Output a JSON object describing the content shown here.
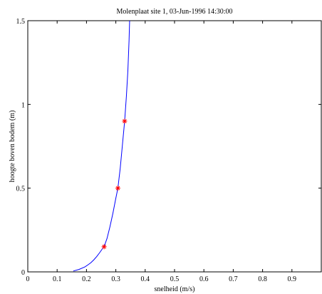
{
  "chart_data": {
    "type": "line",
    "title": "Molenplaat  site 1, 03-Jun-1996 14:30:00",
    "xlabel": "snelheid (m/s)",
    "ylabel": "hoogte boven bodem (m)",
    "xlim": [
      0,
      1
    ],
    "ylim": [
      0,
      1.5
    ],
    "xticks": [
      0,
      0.1,
      0.2,
      0.3,
      0.4,
      0.5,
      0.6,
      0.7,
      0.8,
      0.9
    ],
    "xtick_labels": [
      "0",
      "0.1",
      "0.2",
      "0.3",
      "0.4",
      "0.5",
      "0.6",
      "0.7",
      "0.8",
      "0.9"
    ],
    "yticks": [
      0,
      0.5,
      1,
      1.5
    ],
    "ytick_labels": [
      "0",
      "0.5",
      "1",
      "1.5"
    ],
    "grid": false,
    "series": [
      {
        "kind": "line",
        "color": "#0000ff",
        "x": [
          0.155,
          0.175,
          0.195,
          0.205,
          0.215,
          0.225,
          0.235,
          0.245,
          0.255,
          0.262,
          0.27,
          0.28,
          0.29,
          0.3,
          0.307,
          0.315,
          0.322,
          0.33,
          0.336,
          0.341,
          0.345,
          0.347
        ],
        "y": [
          0.005,
          0.015,
          0.03,
          0.042,
          0.055,
          0.072,
          0.092,
          0.115,
          0.14,
          0.16,
          0.2,
          0.27,
          0.35,
          0.44,
          0.5,
          0.62,
          0.75,
          0.9,
          1.05,
          1.2,
          1.38,
          1.5
        ]
      },
      {
        "kind": "scatter",
        "marker": "*",
        "color": "#ff0000",
        "x": [
          0.26,
          0.307,
          0.33
        ],
        "y": [
          0.15,
          0.5,
          0.9
        ]
      }
    ]
  }
}
